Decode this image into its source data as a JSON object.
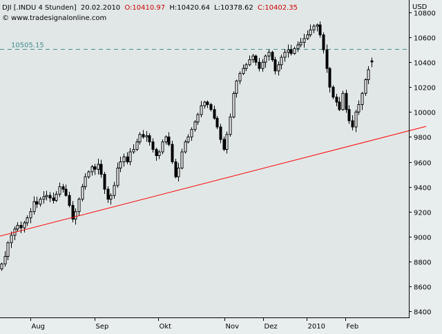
{
  "header": {
    "symbol": "DJI [.INDU  4 Stunden]",
    "date": "20.02.2010",
    "open": "O:10410.97",
    "high": "H:10420.64",
    "low": "L:10378.62",
    "close": "C:10402.35",
    "source": "© www.tradesignalonline.com",
    "currency": "USD"
  },
  "colors": {
    "background": "#e1e7e7",
    "candle": "#000000",
    "trendline": "#ff0000",
    "reference": "#3f8c8c",
    "ohlc_text": "#cc0000"
  },
  "chart_data": {
    "type": "candlestick",
    "title": "DJI [.INDU  4 Stunden]",
    "ylabel": "USD",
    "ylim": [
      8350,
      10900
    ],
    "y_ticks": [
      8400,
      8600,
      8800,
      9000,
      9200,
      9400,
      9600,
      9800,
      10000,
      10200,
      10400,
      10600,
      10800
    ],
    "x_tick_labels": [
      "Aug",
      "Sep",
      "Okt",
      "Nov",
      "Dez",
      "2010",
      "Feb"
    ],
    "reference_line": {
      "label": "10505.15",
      "value": 10505.15
    },
    "trendline": {
      "start": {
        "date": "2009-07-13",
        "value": 8985
      },
      "end": {
        "date": "2010-02-08",
        "value": 9885
      }
    },
    "last_bar": {
      "open": 10410.97,
      "high": 10420.64,
      "low": 10378.62,
      "close": 10402.35
    },
    "closes": [
      8780,
      8840,
      8950,
      9010,
      9060,
      9090,
      9070,
      9110,
      9150,
      9200,
      9280,
      9260,
      9300,
      9320,
      9330,
      9310,
      9290,
      9340,
      9400,
      9380,
      9330,
      9250,
      9140,
      9200,
      9300,
      9400,
      9480,
      9520,
      9560,
      9540,
      9580,
      9500,
      9380,
      9300,
      9330,
      9410,
      9550,
      9600,
      9640,
      9600,
      9680,
      9700,
      9760,
      9820,
      9800,
      9810,
      9760,
      9700,
      9650,
      9680,
      9760,
      9800,
      9740,
      9600,
      9480,
      9550,
      9680,
      9760,
      9800,
      9860,
      9920,
      9980,
      10050,
      10080,
      10060,
      10020,
      9950,
      9880,
      9780,
      9700,
      9820,
      9960,
      10150,
      10250,
      10310,
      10350,
      10380,
      10420,
      10450,
      10400,
      10350,
      10400,
      10450,
      10480,
      10420,
      10330,
      10380,
      10440,
      10480,
      10500,
      10470,
      10510,
      10540,
      10560,
      10590,
      10620,
      10660,
      10690,
      10700,
      10620,
      10500,
      10350,
      10200,
      10120,
      10080,
      10020,
      10150,
      10020,
      9930,
      9880,
      10000,
      10060,
      10150,
      10260,
      10340,
      10402
    ]
  }
}
